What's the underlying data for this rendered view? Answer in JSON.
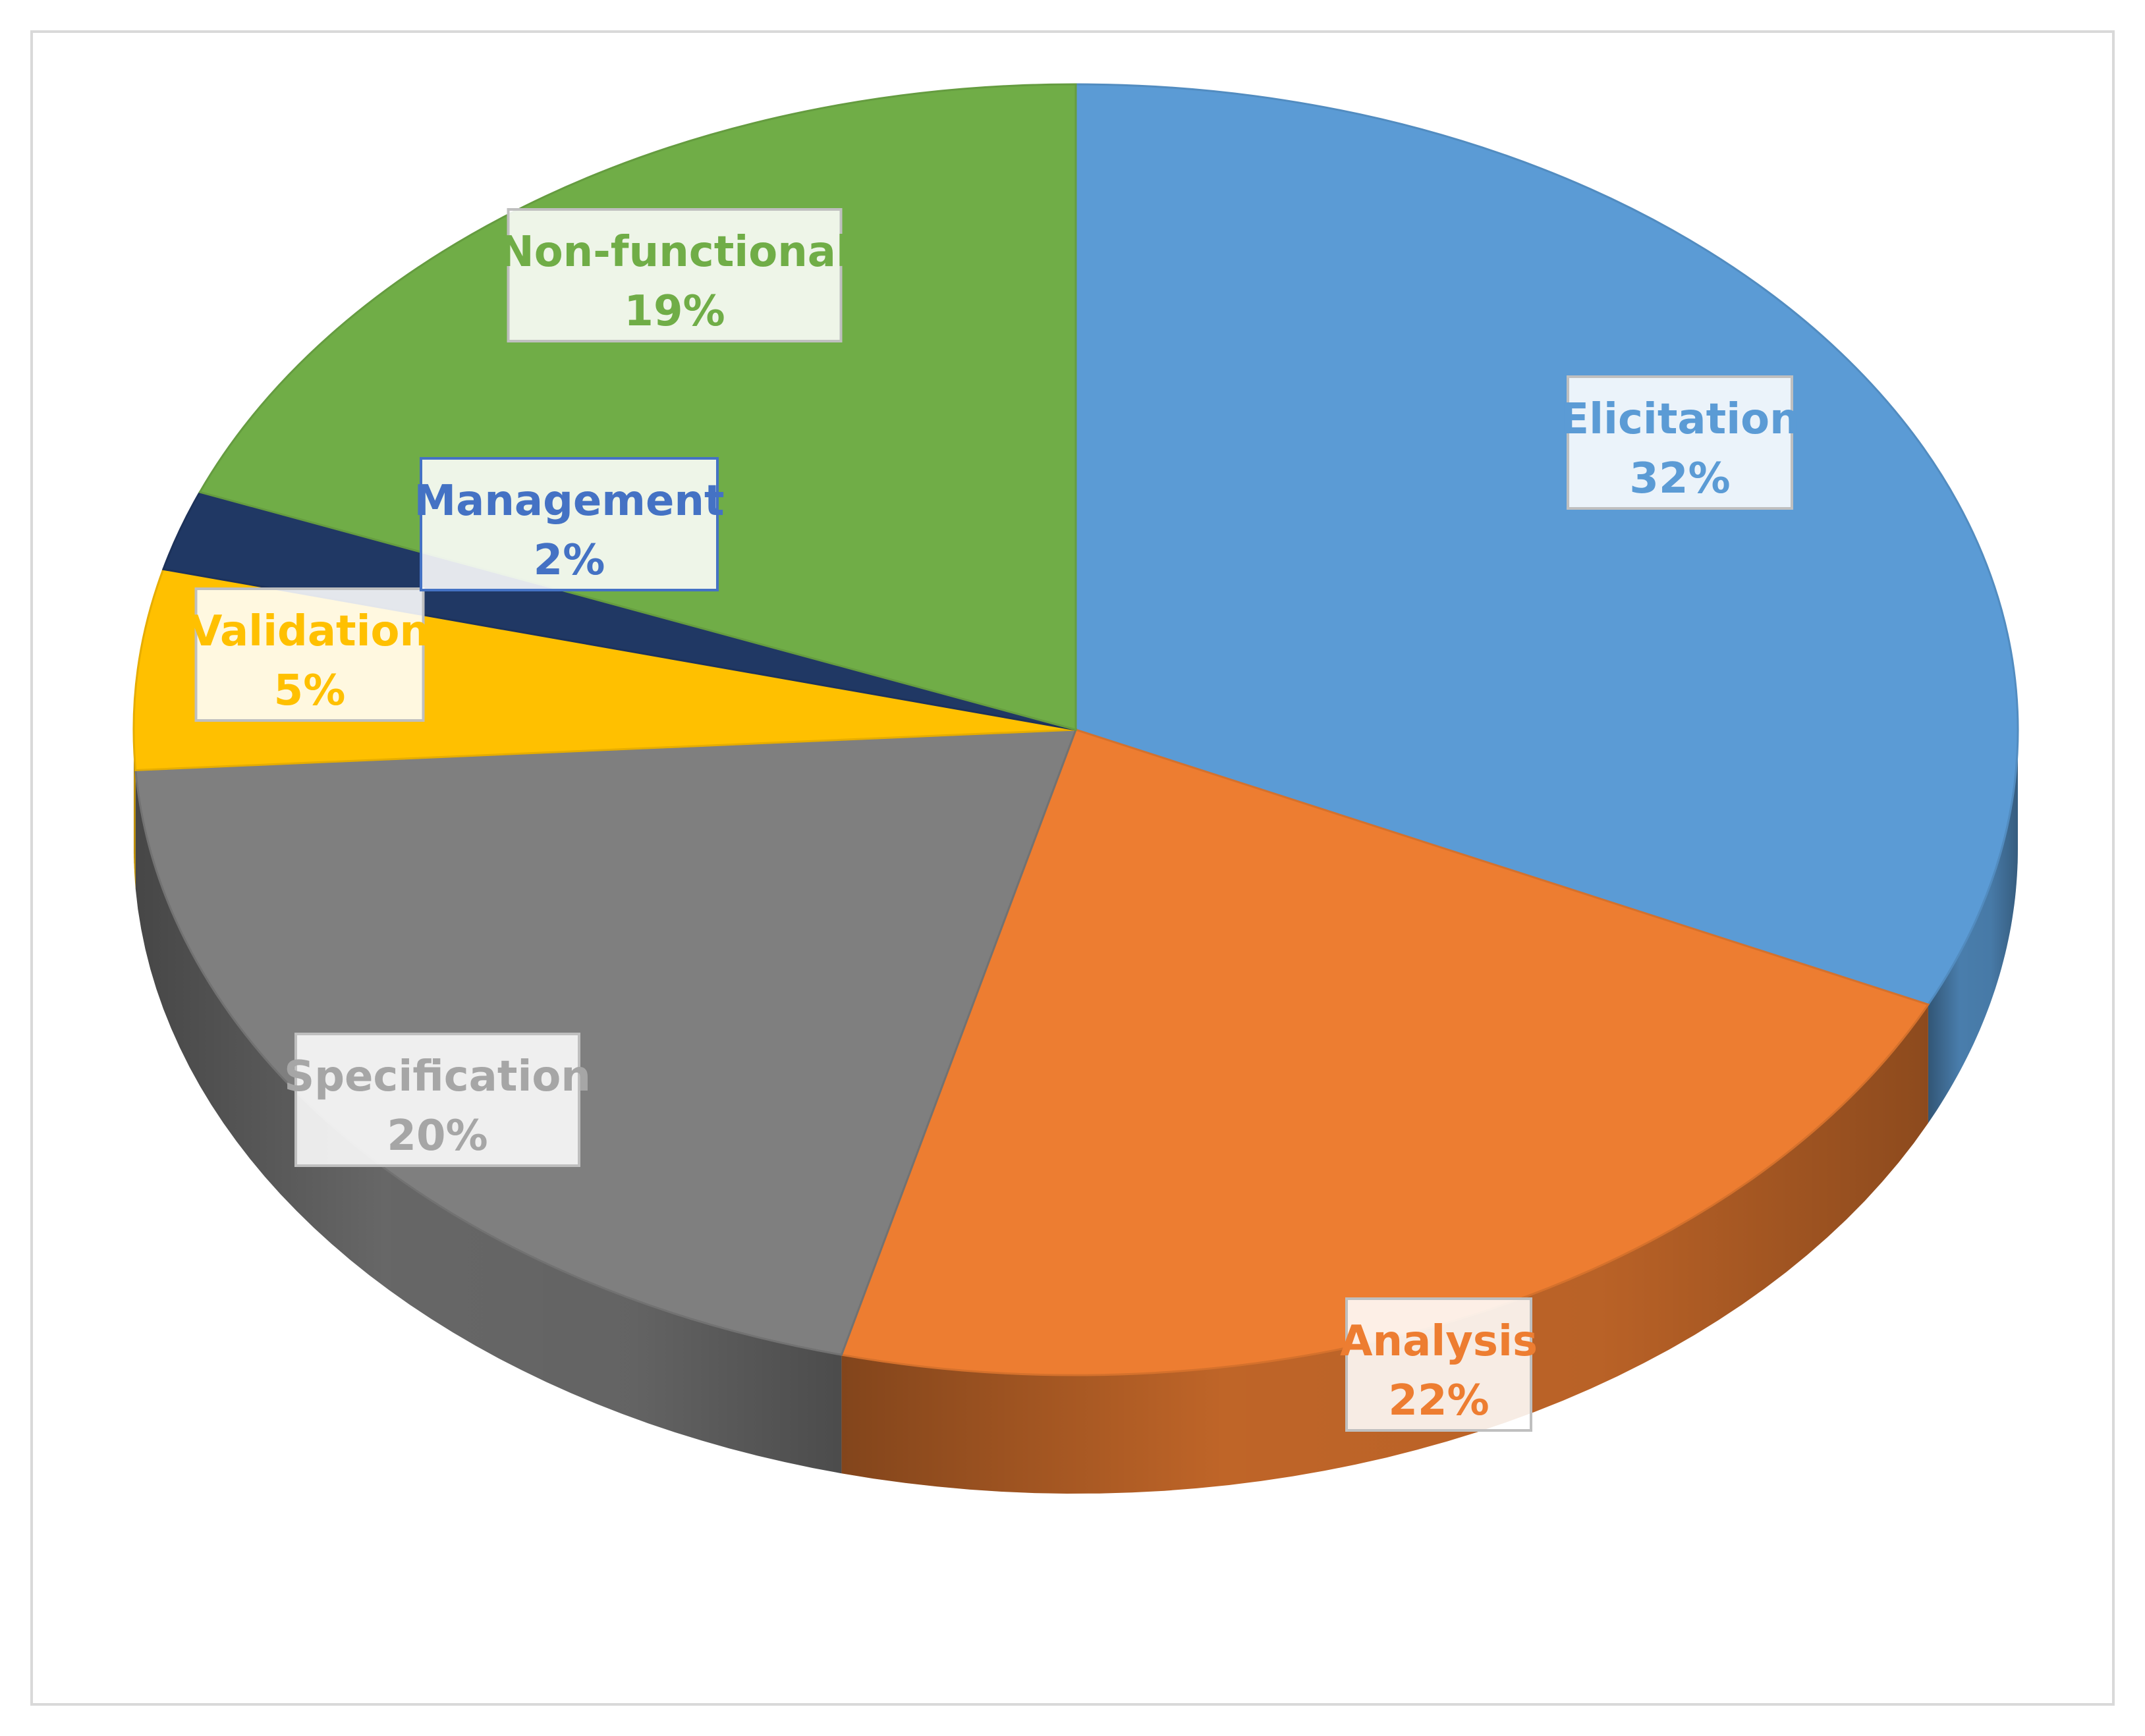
{
  "chart_data": {
    "type": "pie",
    "title": "",
    "slices": [
      {
        "label": "Elicitation",
        "value": 32,
        "percent_label": "32%",
        "color": "#5B9BD5"
      },
      {
        "label": "Analysis",
        "value": 22,
        "percent_label": "22%",
        "color": "#ED7D31"
      },
      {
        "label": "Specification",
        "value": 20,
        "percent_label": "20%",
        "color": "#7F7F7F"
      },
      {
        "label": "Validation",
        "value": 5,
        "percent_label": "5%",
        "color": "#FFC000"
      },
      {
        "label": "Management",
        "value": 2,
        "percent_label": "2%",
        "color": "#203864"
      },
      {
        "label": "Non-functional",
        "value": 19,
        "percent_label": "19%",
        "color": "#70AD47"
      }
    ],
    "label_text_colors": {
      "Elicitation": "#5B9BD5",
      "Analysis": "#ED7D31",
      "Specification": "#A6A6A6",
      "Validation": "#FFC000",
      "Management": "#4472C4",
      "Non-functional": "#70AD47"
    },
    "style": "3d",
    "legend": "none",
    "data_labels": "category and percentage"
  }
}
